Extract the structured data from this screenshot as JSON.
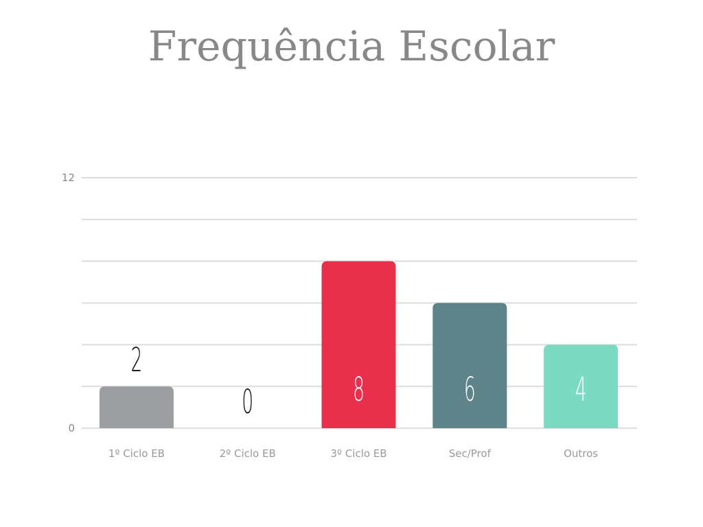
{
  "chart_data": {
    "type": "bar",
    "title": "Frequência Escolar",
    "categories": [
      "1º Ciclo EB",
      "2º Ciclo EB",
      "3º Ciclo EB",
      "Sec/Prof",
      "Outros"
    ],
    "values": [
      2,
      0,
      8,
      6,
      4
    ],
    "colors": [
      "#9b9fa2",
      "#ffffff",
      "#e8304d",
      "#5e8388",
      "#7adbc2"
    ],
    "ylim": [
      0,
      12
    ],
    "yticks": [
      "0",
      "12"
    ],
    "gridlines": 6,
    "grid": true,
    "xlabel": "",
    "ylabel": ""
  }
}
